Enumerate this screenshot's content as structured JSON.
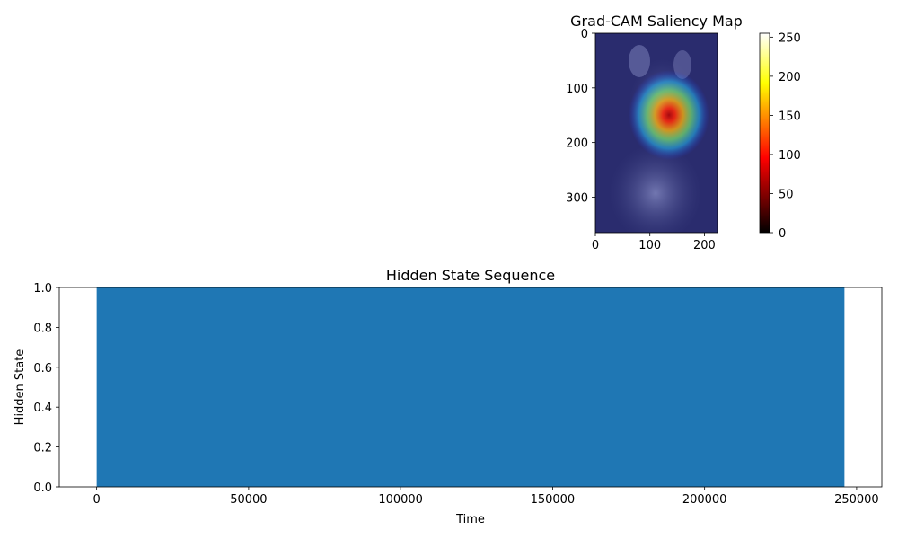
{
  "chart_data": [
    {
      "type": "heatmap",
      "title": "Grad-CAM Saliency Map",
      "xlabel": "",
      "ylabel": "",
      "xlim": [
        0,
        224
      ],
      "ylim": [
        365,
        0
      ],
      "x_ticks": [
        0,
        100,
        200
      ],
      "x_tick_labels": [
        "0",
        "100",
        "200"
      ],
      "y_ticks": [
        0,
        100,
        200,
        300
      ],
      "y_tick_labels": [
        "0",
        "100",
        "200",
        "300"
      ],
      "image_description": "dark photo of a grey schnauzer dog sitting, blended with a jet-colormap saliency overlay whose hotspot is on the dog's face",
      "hotspot": {
        "x": 135,
        "y": 150
      },
      "colorbar": {
        "colormap": "hot",
        "range": [
          0,
          255
        ],
        "ticks": [
          0,
          50,
          100,
          150,
          200,
          250
        ],
        "tick_labels": [
          "0",
          "50",
          "100",
          "150",
          "200",
          "250"
        ]
      },
      "grid": false
    },
    {
      "type": "bar",
      "title": "Hidden State Sequence",
      "xlabel": "Time",
      "ylabel": "Hidden State",
      "xlim": [
        -12300,
        258300
      ],
      "ylim": [
        0,
        1
      ],
      "x_ticks": [
        0,
        50000,
        100000,
        150000,
        200000,
        250000
      ],
      "x_tick_labels": [
        "0",
        "50000",
        "100000",
        "150000",
        "200000",
        "250000"
      ],
      "y_ticks": [
        0,
        0.2,
        0.4,
        0.6,
        0.8,
        1.0
      ],
      "y_tick_labels": [
        "0.0",
        "0.2",
        "0.4",
        "0.6",
        "0.8",
        "1.0"
      ],
      "series": [
        {
          "x_start": 0,
          "x_end": 246000,
          "value": 1.0
        }
      ],
      "color": "#1f77b4",
      "grid": false
    }
  ]
}
